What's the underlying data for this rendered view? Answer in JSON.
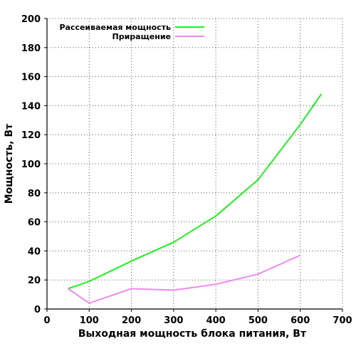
{
  "chart_data": {
    "type": "line",
    "xlabel": "Выходная мощность блока питания, Вт",
    "ylabel": "Мощность, Вт",
    "xlim": [
      0,
      700
    ],
    "ylim": [
      0,
      200
    ],
    "x_ticks": [
      0,
      100,
      200,
      300,
      400,
      500,
      600,
      700
    ],
    "y_ticks": [
      0,
      20,
      40,
      60,
      80,
      100,
      120,
      140,
      160,
      180,
      200
    ],
    "grid": true,
    "legend_position": "top",
    "series": [
      {
        "name": "Рассеиваемая мощность",
        "color": "#22ee22",
        "x": [
          50,
          100,
          200,
          300,
          400,
          500,
          600,
          650
        ],
        "y": [
          14,
          19,
          33,
          46,
          64,
          89,
          127,
          148
        ]
      },
      {
        "name": "Приращение",
        "color": "#ee88ee",
        "x": [
          50,
          100,
          200,
          300,
          400,
          500,
          600
        ],
        "y": [
          14,
          4,
          14,
          13,
          17,
          24,
          37
        ]
      }
    ]
  }
}
